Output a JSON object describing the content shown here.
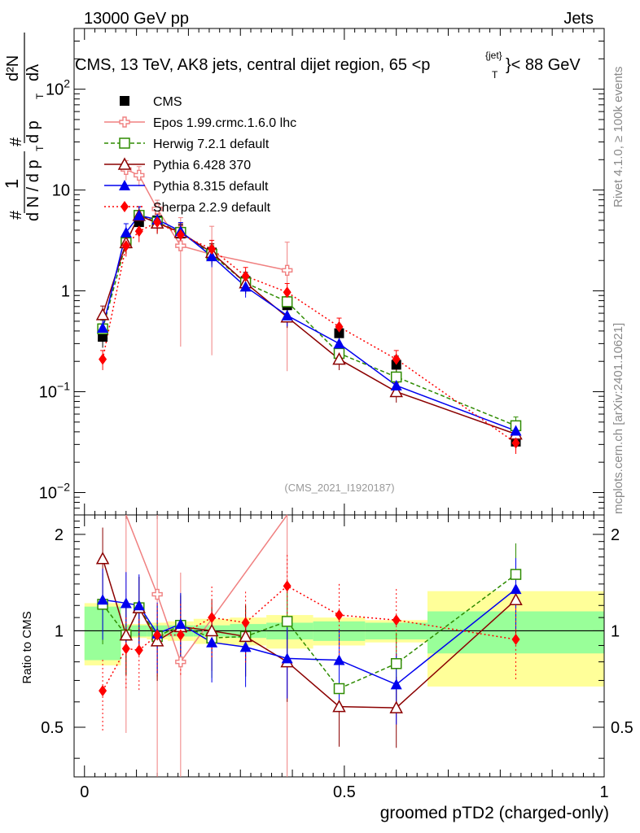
{
  "header": {
    "energy_label": "13000 GeV pp",
    "category_label": "Jets"
  },
  "side_labels": {
    "rivet": "Rivet 4.1.0, ≥ 100k events",
    "mcplots": "mcplots.cern.ch [arXiv:2401.10621]"
  },
  "chart_data": {
    "type": "line",
    "title": "CMS, 13 TeV, AK8 jets, central dijet region, 65 <p",
    "title_sup": "{jet}",
    "title_sub": "T",
    "title_end": "}< 88 GeV",
    "analysis_id": "(CMS_2021_I1920187)",
    "xlabel": "groomed pTD2 (charged-only)",
    "ylabel": "1/dN/dp_T dN/dp_T dλ",
    "ylabel_parts": {
      "hash": "#",
      "one": "1",
      "dN": "d N / d p",
      "T": "T",
      "d2N": "d²N",
      "dpT": "d p",
      "dl": "dλ"
    },
    "xlim": [
      -0.02,
      1.0
    ],
    "ylim_main": [
      0.006,
      400
    ],
    "ylim_ratio": [
      0.35,
      2.3
    ],
    "ratio_ylabel": "Ratio to CMS",
    "x_ticks": [
      0,
      0.5,
      1
    ],
    "x_tick_labels": [
      "0",
      "0.5",
      "1"
    ],
    "y_ticks_main": [
      0.01,
      0.1,
      1,
      10,
      100
    ],
    "y_tick_labels_main": [
      {
        "base": "10",
        "exp": "−2"
      },
      {
        "base": "10",
        "exp": "−1"
      },
      {
        "base": "1",
        "exp": ""
      },
      {
        "base": "10",
        "exp": ""
      },
      {
        "base": "10",
        "exp": "2"
      }
    ],
    "y_ticks_ratio": [
      0.5,
      1,
      2
    ],
    "y_tick_labels_ratio": [
      "0.5",
      "1",
      "2"
    ],
    "x": [
      0.035,
      0.08,
      0.105,
      0.14,
      0.185,
      0.245,
      0.31,
      0.39,
      0.49,
      0.6,
      0.83
    ],
    "bins": [
      [
        0.0,
        0.07
      ],
      [
        0.07,
        0.09
      ],
      [
        0.09,
        0.12
      ],
      [
        0.12,
        0.16
      ],
      [
        0.16,
        0.21
      ],
      [
        0.21,
        0.28
      ],
      [
        0.28,
        0.35
      ],
      [
        0.35,
        0.44
      ],
      [
        0.44,
        0.54
      ],
      [
        0.54,
        0.66
      ],
      [
        0.66,
        1.0
      ]
    ],
    "bands": {
      "green_half": [
        0.19,
        0.04,
        0.04,
        0.04,
        0.04,
        0.04,
        0.05,
        0.06,
        0.07,
        0.06,
        0.15
      ],
      "yellow_half": [
        0.22,
        0.05,
        0.05,
        0.06,
        0.07,
        0.09,
        0.1,
        0.12,
        0.1,
        0.08,
        0.33
      ]
    },
    "series": [
      {
        "name": "CMS",
        "color": "#000000",
        "marker": "square-filled",
        "dash": "none",
        "values": [
          0.35,
          3.1,
          4.8,
          5.0,
          3.7,
          2.4,
          1.25,
          0.72,
          0.38,
          0.185,
          0.032
        ],
        "ratios": [
          1,
          1,
          1,
          1,
          1,
          1,
          1,
          1,
          1,
          1,
          1
        ]
      },
      {
        "name": "Epos 1.99.crmc.1.6.0 lhc",
        "color": "#f08080",
        "marker": "cross-open",
        "dash": "none",
        "values": [
          null,
          16,
          14,
          6.5,
          2.8,
          2.3,
          null,
          1.6,
          null,
          null,
          null
        ],
        "ratios": [
          null,
          4.8,
          null,
          1.3,
          0.8,
          null,
          null,
          2.3,
          null,
          null,
          null
        ]
      },
      {
        "name": "Herwig 7.2.1 default",
        "color": "#2e8b00",
        "marker": "square-open",
        "dash": "5,3",
        "values": [
          0.42,
          3.0,
          5.6,
          4.8,
          3.8,
          2.3,
          1.2,
          0.78,
          0.24,
          0.14,
          0.046
        ],
        "ratios": [
          1.21,
          0.97,
          1.18,
          0.96,
          1.04,
          0.95,
          0.96,
          1.07,
          0.66,
          0.79,
          1.5
        ]
      },
      {
        "name": "Pythia 6.428 370",
        "color": "#8b0000",
        "marker": "triangle-open",
        "dash": "none",
        "values": [
          0.58,
          3.0,
          5.6,
          4.7,
          3.8,
          2.4,
          1.2,
          0.55,
          0.21,
          0.1,
          0.038
        ],
        "ratios": [
          1.68,
          0.97,
          1.18,
          0.93,
          1.03,
          1.0,
          0.96,
          0.8,
          0.58,
          0.575,
          1.25
        ]
      },
      {
        "name": "Pythia 8.315 default",
        "color": "#0000ee",
        "marker": "triangle-filled",
        "dash": "none",
        "values": [
          0.43,
          3.8,
          5.6,
          5.1,
          3.9,
          2.2,
          1.1,
          0.57,
          0.3,
          0.115,
          0.041
        ],
        "ratios": [
          1.25,
          1.22,
          1.2,
          0.98,
          1.05,
          0.92,
          0.89,
          0.82,
          0.81,
          0.68,
          1.35
        ]
      },
      {
        "name": "Sherpa 2.2.9 default",
        "color": "#ff0000",
        "marker": "diamond-filled",
        "dash": "2,3",
        "values": [
          0.21,
          2.8,
          3.9,
          4.8,
          3.6,
          2.6,
          1.4,
          0.97,
          0.44,
          0.21,
          0.031
        ],
        "ratios": [
          0.65,
          0.88,
          0.87,
          0.97,
          0.97,
          1.1,
          1.06,
          1.38,
          1.12,
          1.08,
          0.94
        ]
      }
    ]
  }
}
